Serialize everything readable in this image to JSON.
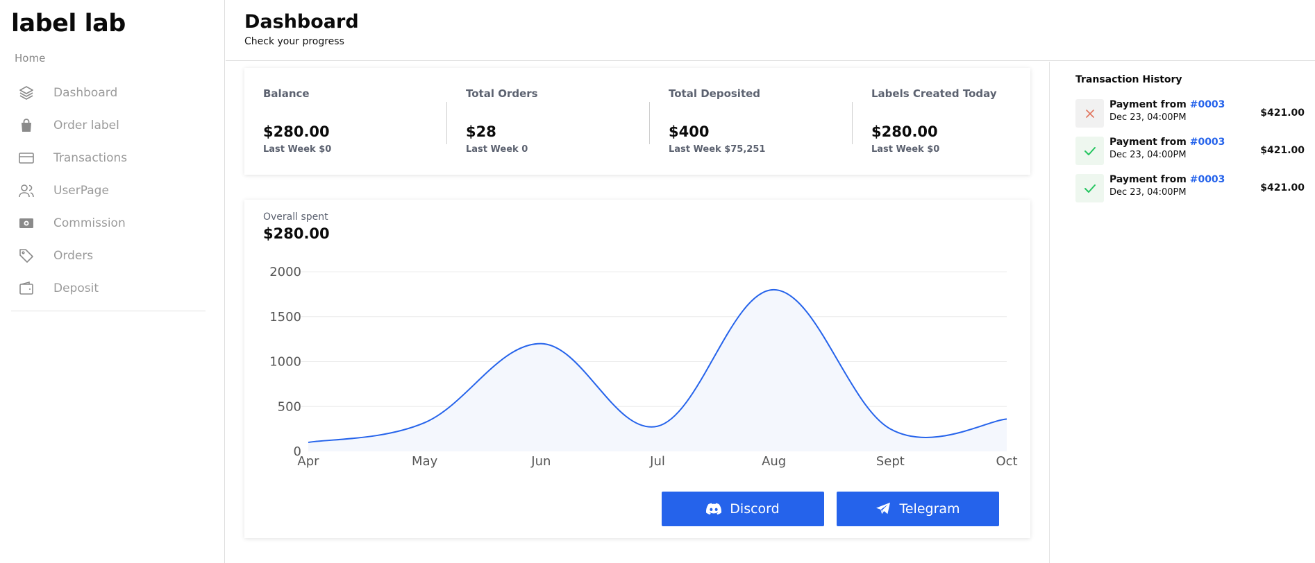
{
  "sidebar": {
    "logo": "label lab",
    "home": "Home",
    "items": [
      {
        "label": "Dashboard",
        "icon": "layers-icon"
      },
      {
        "label": "Order label",
        "icon": "shopping-bag-icon"
      },
      {
        "label": "Transactions",
        "icon": "credit-card-icon"
      },
      {
        "label": "UserPage",
        "icon": "users-icon"
      },
      {
        "label": "Commission",
        "icon": "banknote-icon"
      },
      {
        "label": "Orders",
        "icon": "tag-icon"
      },
      {
        "label": "Deposit",
        "icon": "wallet-icon"
      }
    ]
  },
  "header": {
    "title": "Dashboard",
    "subtitle": "Check your progress"
  },
  "stats": [
    {
      "title": "Balance",
      "value": "$280.00",
      "sub": "Last Week $0"
    },
    {
      "title": "Total Orders",
      "value": "$28",
      "sub": "Last Week 0"
    },
    {
      "title": "Total Deposited",
      "value": "$400",
      "sub": "Last Week $75,251"
    },
    {
      "title": "Labels Created Today",
      "value": "$280.00",
      "sub": "Last Week $0"
    }
  ],
  "overview": {
    "label": "Overall spent",
    "value": "$280.00"
  },
  "chart_data": {
    "type": "area",
    "x": [
      "Apr",
      "May",
      "Jun",
      "Jul",
      "Aug",
      "Sept",
      "Oct"
    ],
    "yticks": [
      0,
      500,
      1000,
      1500,
      2000
    ],
    "ylim": [
      0,
      2000
    ],
    "series": [
      {
        "values": [
          100,
          320,
          1200,
          280,
          1800,
          250,
          360
        ]
      }
    ],
    "line_color": "#2563eb",
    "fill_color": "#f4f7fd",
    "grid": true,
    "title": "",
    "xlabel": "",
    "ylabel": ""
  },
  "buttons": {
    "discord": "Discord",
    "telegram": "Telegram"
  },
  "transactions": {
    "title": "Transaction History",
    "items": [
      {
        "prefix": "Payment from ",
        "id": "#0003",
        "date": "Dec 23, 04:00PM",
        "amount": "$421.00",
        "status": "failed"
      },
      {
        "prefix": "Payment from ",
        "id": "#0003",
        "date": "Dec 23, 04:00PM",
        "amount": "$421.00",
        "status": "success"
      },
      {
        "prefix": "Payment from ",
        "id": "#0003",
        "date": "Dec 23, 04:00PM",
        "amount": "$421.00",
        "status": "success"
      }
    ]
  },
  "colors": {
    "accent": "#2563eb",
    "success": "#22c55e",
    "failure": "#e0735c"
  }
}
